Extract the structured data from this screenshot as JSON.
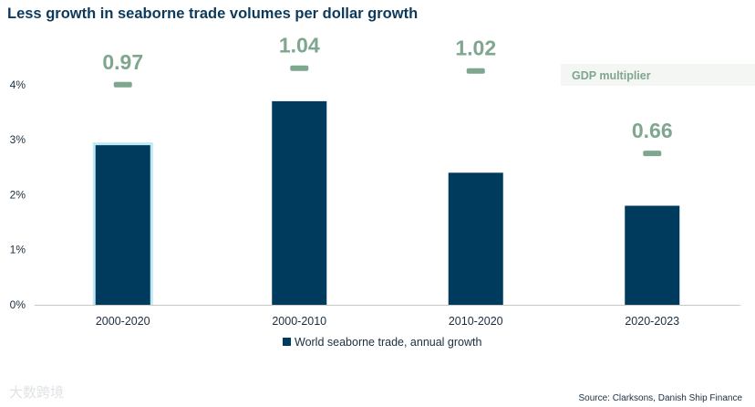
{
  "chart_data": {
    "type": "bar",
    "title": "Less growth in seaborne trade volumes per dollar growth",
    "categories": [
      "2000-2020",
      "2000-2010",
      "2010-2020",
      "2020-2023"
    ],
    "series": [
      {
        "name": "World seaborne trade, annual growth",
        "values": [
          2.9,
          3.7,
          2.4,
          1.8
        ],
        "color": "#003a5c"
      }
    ],
    "multiplier": {
      "label": "GDP multiplier",
      "values": [
        "0.97",
        "1.04",
        "1.02",
        "0.66"
      ],
      "marker_y": [
        4.0,
        4.3,
        4.25,
        2.75
      ],
      "color": "#7fa68f"
    },
    "highlight_category": "2000-2020",
    "highlight_color": "#bfe9f7",
    "yticks": [
      "0%",
      "1%",
      "2%",
      "3%",
      "4%"
    ],
    "ylim": [
      0,
      4.5
    ],
    "grid": false,
    "legend_position": "bottom-center",
    "source": "Source: Clarksons, Danish Ship Finance"
  },
  "watermark": "大数跨境"
}
